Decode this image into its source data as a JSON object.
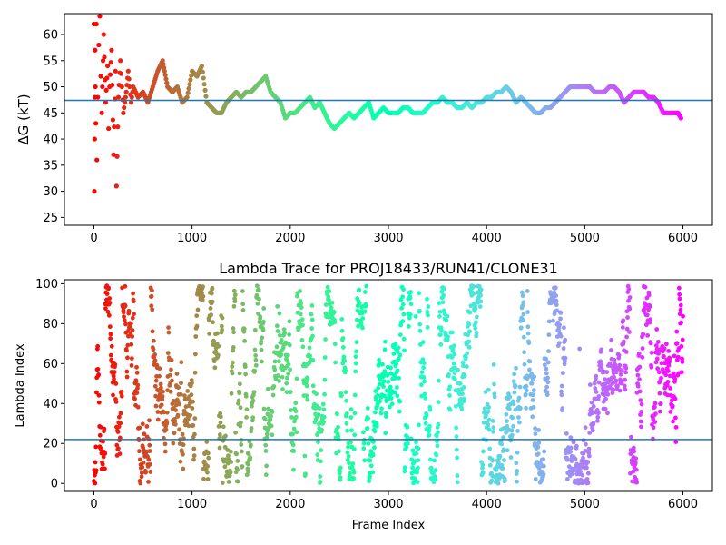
{
  "chart_data": [
    {
      "type": "scatter",
      "title": "",
      "xlabel": "",
      "ylabel": "ΔG (kT)",
      "xlim": [
        -300,
        6300
      ],
      "ylim": [
        23.5,
        64
      ],
      "xticks": [
        0,
        1000,
        2000,
        3000,
        4000,
        5000,
        6000
      ],
      "yticks": [
        25,
        30,
        35,
        40,
        45,
        50,
        55,
        60
      ],
      "hline": 47.4,
      "colormap": "rainbow (reversed: red at frame 0, violet at frame 6000)",
      "series": [
        {
          "values_description": "free-energy estimate per frame",
          "points": [
            [
              0,
              62
            ],
            [
              5,
              30
            ],
            [
              8,
              40
            ],
            [
              10,
              48
            ],
            [
              12,
              57
            ],
            [
              15,
              50
            ],
            [
              20,
              43
            ],
            [
              25,
              62
            ],
            [
              30,
              36
            ],
            [
              40,
              48
            ],
            [
              50,
              58
            ],
            [
              60,
              63.5
            ],
            [
              70,
              52
            ],
            [
              80,
              45
            ],
            [
              100,
              60
            ],
            [
              120,
              47
            ],
            [
              140,
              54
            ],
            [
              150,
              42
            ],
            [
              160,
              50
            ],
            [
              180,
              57
            ],
            [
              200,
              37
            ],
            [
              220,
              53
            ],
            [
              230,
              31
            ],
            [
              250,
              48
            ],
            [
              270,
              55
            ],
            [
              300,
              45
            ],
            [
              330,
              49
            ],
            [
              350,
              53
            ],
            [
              380,
              47
            ],
            [
              400,
              50
            ],
            [
              450,
              48
            ],
            [
              500,
              49
            ],
            [
              550,
              47
            ],
            [
              600,
              50
            ],
            [
              650,
              53
            ],
            [
              700,
              55
            ],
            [
              720,
              53
            ],
            [
              750,
              50
            ],
            [
              800,
              49
            ],
            [
              850,
              50
            ],
            [
              900,
              47
            ],
            [
              950,
              48
            ],
            [
              1000,
              53
            ],
            [
              1050,
              52
            ],
            [
              1100,
              54
            ],
            [
              1150,
              47
            ],
            [
              1200,
              46
            ],
            [
              1250,
              45
            ],
            [
              1300,
              45
            ],
            [
              1350,
              47
            ],
            [
              1400,
              48
            ],
            [
              1450,
              49
            ],
            [
              1500,
              48
            ],
            [
              1550,
              49
            ],
            [
              1600,
              49
            ],
            [
              1650,
              50
            ],
            [
              1700,
              51
            ],
            [
              1750,
              52
            ],
            [
              1800,
              49
            ],
            [
              1850,
              48
            ],
            [
              1900,
              47
            ],
            [
              1950,
              44
            ],
            [
              2000,
              45
            ],
            [
              2050,
              45
            ],
            [
              2100,
              46
            ],
            [
              2150,
              47
            ],
            [
              2200,
              48
            ],
            [
              2250,
              46
            ],
            [
              2300,
              47
            ],
            [
              2350,
              45
            ],
            [
              2400,
              43
            ],
            [
              2450,
              42
            ],
            [
              2500,
              43
            ],
            [
              2550,
              44
            ],
            [
              2600,
              45
            ],
            [
              2650,
              44
            ],
            [
              2700,
              45
            ],
            [
              2750,
              46
            ],
            [
              2800,
              47
            ],
            [
              2850,
              44
            ],
            [
              2900,
              45
            ],
            [
              2950,
              46
            ],
            [
              3000,
              45
            ],
            [
              3050,
              45
            ],
            [
              3100,
              45
            ],
            [
              3150,
              46
            ],
            [
              3200,
              46
            ],
            [
              3250,
              45
            ],
            [
              3300,
              45
            ],
            [
              3350,
              45
            ],
            [
              3400,
              46
            ],
            [
              3450,
              47
            ],
            [
              3500,
              47
            ],
            [
              3550,
              48
            ],
            [
              3600,
              47
            ],
            [
              3650,
              47
            ],
            [
              3700,
              46
            ],
            [
              3750,
              46
            ],
            [
              3800,
              47
            ],
            [
              3850,
              46
            ],
            [
              3900,
              47
            ],
            [
              3950,
              47
            ],
            [
              4000,
              48
            ],
            [
              4050,
              48
            ],
            [
              4100,
              49
            ],
            [
              4150,
              49
            ],
            [
              4200,
              50
            ],
            [
              4250,
              49
            ],
            [
              4300,
              47
            ],
            [
              4350,
              48
            ],
            [
              4400,
              47
            ],
            [
              4450,
              46
            ],
            [
              4500,
              45
            ],
            [
              4550,
              45
            ],
            [
              4600,
              46
            ],
            [
              4650,
              46
            ],
            [
              4700,
              47
            ],
            [
              4750,
              48
            ],
            [
              4800,
              49
            ],
            [
              4850,
              50
            ],
            [
              4900,
              50
            ],
            [
              4950,
              50
            ],
            [
              5000,
              50
            ],
            [
              5050,
              50
            ],
            [
              5100,
              49
            ],
            [
              5150,
              49
            ],
            [
              5200,
              49
            ],
            [
              5250,
              50
            ],
            [
              5300,
              50
            ],
            [
              5350,
              49
            ],
            [
              5400,
              47
            ],
            [
              5450,
              48
            ],
            [
              5500,
              49
            ],
            [
              5550,
              49
            ],
            [
              5600,
              49
            ],
            [
              5650,
              48
            ],
            [
              5700,
              48
            ],
            [
              5750,
              47
            ],
            [
              5800,
              45
            ],
            [
              5850,
              45
            ],
            [
              5900,
              45
            ],
            [
              5950,
              45
            ],
            [
              5980,
              44
            ]
          ]
        }
      ]
    },
    {
      "type": "scatter",
      "title": "Lambda Trace for PROJ18433/RUN41/CLONE31",
      "xlabel": "Frame Index",
      "ylabel": "Lambda Index",
      "xlim": [
        -300,
        6300
      ],
      "ylim": [
        -4,
        102
      ],
      "xticks": [
        0,
        1000,
        2000,
        3000,
        4000,
        5000,
        6000
      ],
      "yticks": [
        0,
        20,
        40,
        60,
        80,
        100
      ],
      "hline": 22,
      "colormap": "rainbow (reversed: red at frame 0, violet at frame 6000)",
      "series": [
        {
          "values_description": "lambda window index visited at each frame (0–99), approx. 6000 frames"
        }
      ]
    }
  ]
}
